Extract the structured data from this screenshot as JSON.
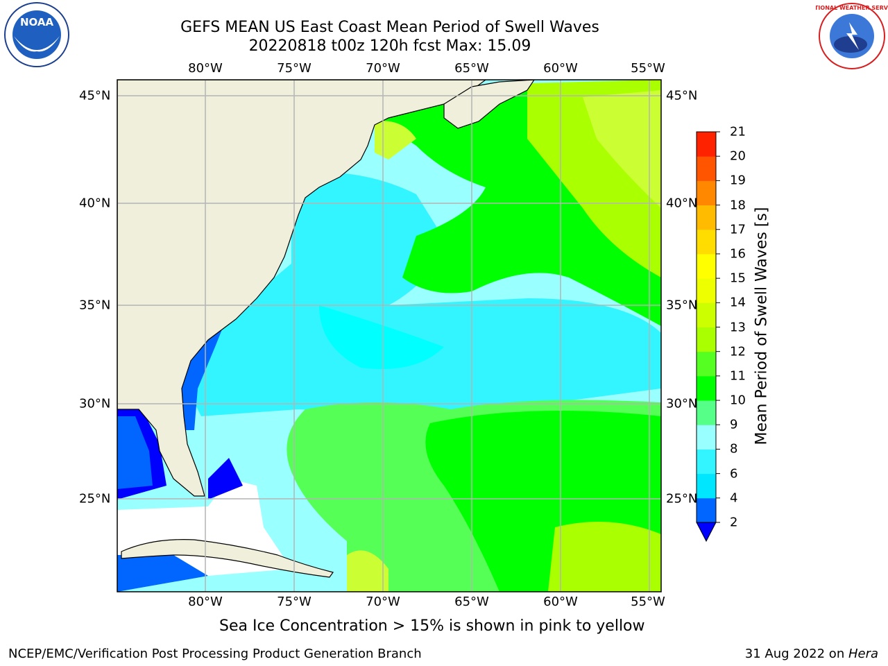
{
  "title_line1": "GEFS MEAN US East Coast Mean Period of Swell Waves",
  "title_line2": "20220818 t00z 120h fcst   Max: 15.09",
  "lon_labels": [
    "80°W",
    "75°W",
    "70°W",
    "65°W",
    "60°W",
    "55°W"
  ],
  "lat_labels": [
    "45°N",
    "40°N",
    "35°N",
    "30°N",
    "25°N"
  ],
  "colorbar": {
    "title": "Mean Period of Swell Waves [s]",
    "ticks": [
      "2",
      "4",
      "6",
      "8",
      "9",
      "10",
      "11",
      "12",
      "13",
      "14",
      "15",
      "16",
      "17",
      "18",
      "19",
      "20",
      "21"
    ],
    "colors": [
      "#0066ff",
      "#00e6ff",
      "#33f5ff",
      "#99ffff",
      "#55ff88",
      "#00ff00",
      "#55ff22",
      "#aaff00",
      "#ccff00",
      "#eeff00",
      "#ffff00",
      "#ffdd00",
      "#ffbb00",
      "#ff8800",
      "#ff5500",
      "#ff2200"
    ],
    "extend_color": "#0000ff"
  },
  "map_colors": {
    "land": "#efefdc",
    "ice": "#ffffff",
    "grid": "#b4b4b4"
  },
  "footnote": "Sea Ice Concentration > 15% is shown in pink to yellow",
  "footer_left": "NCEP/EMC/Verification Post Processing Product Generation Branch",
  "footer_right_date": "31 Aug 2022 on ",
  "footer_right_host": "Hera",
  "logos": {
    "left_text": "NOAA",
    "right_text": "NATIONAL WEATHER SERVICE"
  }
}
